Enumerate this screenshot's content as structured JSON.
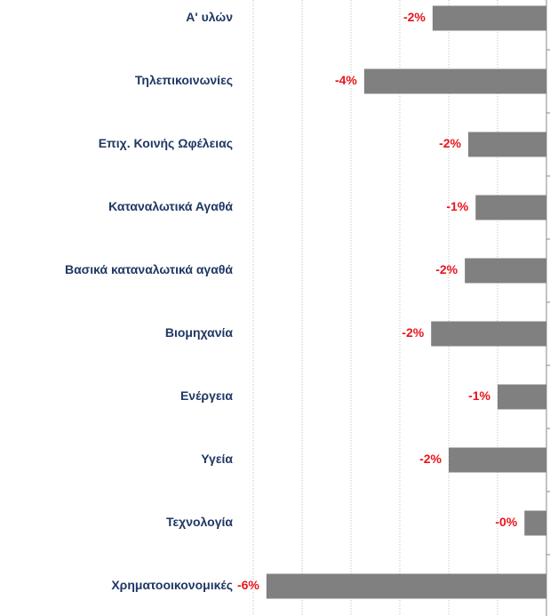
{
  "chart_data": {
    "type": "bar",
    "orientation": "horizontal",
    "categories": [
      "A' υλών",
      "Τηλεπικοινωνίες",
      "Επιχ. Κοινής Ωφέλειας",
      "Καταναλωτικά Αγαθά",
      "Βασικά καταναλωτικά αγαθά",
      "Βιομηχανία",
      "Ενέργεια",
      "Υγεία",
      "Τεχνολογία",
      "Χρηματοοικονομικές"
    ],
    "values": [
      -2.33,
      -3.73,
      -1.6,
      -1.45,
      -1.67,
      -2.36,
      -1.0,
      -2.0,
      -0.45,
      -5.73
    ],
    "value_labels": [
      "-2%",
      "-4%",
      "-2%",
      "-1%",
      "-2%",
      "-2%",
      "-1%",
      "-2%",
      "-0%",
      "-6%"
    ],
    "color": "#808080",
    "xlim": [
      -6,
      0
    ],
    "xticks": [
      -6,
      -5,
      -4,
      -3,
      -2,
      -1,
      0
    ],
    "grid": true
  }
}
